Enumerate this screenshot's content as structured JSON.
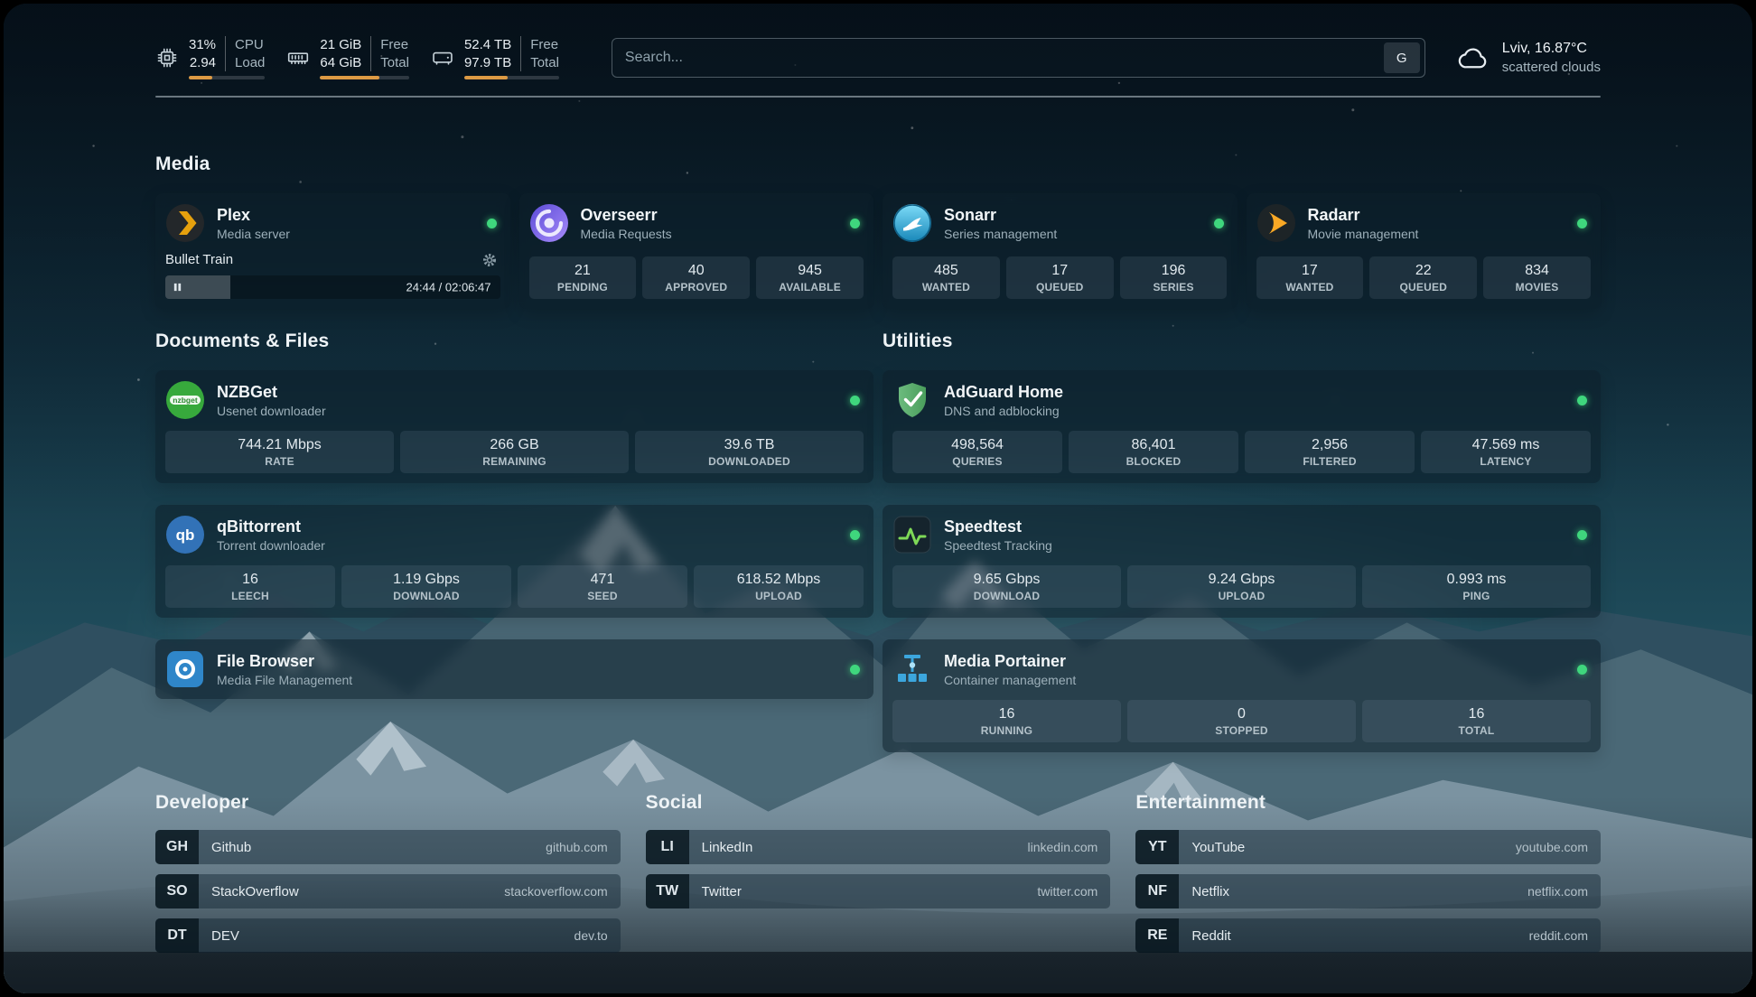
{
  "topbar": {
    "cpu": {
      "value1": "31%",
      "value2": "2.94",
      "label1": "CPU",
      "label2": "Load",
      "progress_percent": 31
    },
    "memory": {
      "value1": "21 GiB",
      "value2": "64 GiB",
      "label1": "Free",
      "label2": "Total",
      "progress_percent": 67
    },
    "disk": {
      "value1": "52.4 TB",
      "value2": "97.9 TB",
      "label1": "Free",
      "label2": "Total",
      "progress_percent": 46
    },
    "search": {
      "placeholder": "Search...",
      "provider": "G"
    },
    "weather": {
      "location": "Lviv, 16.87°C",
      "condition": "scattered clouds"
    }
  },
  "media": {
    "title": "Media",
    "plex": {
      "name": "Plex",
      "desc": "Media server",
      "playing_title": "Bullet Train",
      "time": "24:44 / 02:06:47",
      "progress_percent": 19.5
    },
    "overseerr": {
      "name": "Overseerr",
      "desc": "Media Requests",
      "stats": [
        {
          "value": "21",
          "label": "PENDING"
        },
        {
          "value": "40",
          "label": "APPROVED"
        },
        {
          "value": "945",
          "label": "AVAILABLE"
        }
      ]
    },
    "sonarr": {
      "name": "Sonarr",
      "desc": "Series management",
      "stats": [
        {
          "value": "485",
          "label": "WANTED"
        },
        {
          "value": "17",
          "label": "QUEUED"
        },
        {
          "value": "196",
          "label": "SERIES"
        }
      ]
    },
    "radarr": {
      "name": "Radarr",
      "desc": "Movie management",
      "stats": [
        {
          "value": "17",
          "label": "WANTED"
        },
        {
          "value": "22",
          "label": "QUEUED"
        },
        {
          "value": "834",
          "label": "MOVIES"
        }
      ]
    }
  },
  "documents": {
    "title": "Documents & Files",
    "nzbget": {
      "name": "NZBGet",
      "desc": "Usenet downloader",
      "stats": [
        {
          "value": "744.21 Mbps",
          "label": "RATE"
        },
        {
          "value": "266 GB",
          "label": "REMAINING"
        },
        {
          "value": "39.6 TB",
          "label": "DOWNLOADED"
        }
      ]
    },
    "qbittorrent": {
      "name": "qBittorrent",
      "desc": "Torrent downloader",
      "stats": [
        {
          "value": "16",
          "label": "LEECH"
        },
        {
          "value": "1.19 Gbps",
          "label": "DOWNLOAD"
        },
        {
          "value": "471",
          "label": "SEED"
        },
        {
          "value": "618.52 Mbps",
          "label": "UPLOAD"
        }
      ]
    },
    "filebrowser": {
      "name": "File Browser",
      "desc": "Media File Management"
    }
  },
  "utilities": {
    "title": "Utilities",
    "adguard": {
      "name": "AdGuard Home",
      "desc": "DNS and adblocking",
      "stats": [
        {
          "value": "498,564",
          "label": "QUERIES"
        },
        {
          "value": "86,401",
          "label": "BLOCKED"
        },
        {
          "value": "2,956",
          "label": "FILTERED"
        },
        {
          "value": "47.569 ms",
          "label": "LATENCY"
        }
      ]
    },
    "speedtest": {
      "name": "Speedtest",
      "desc": "Speedtest Tracking",
      "stats": [
        {
          "value": "9.65 Gbps",
          "label": "DOWNLOAD"
        },
        {
          "value": "9.24 Gbps",
          "label": "UPLOAD"
        },
        {
          "value": "0.993 ms",
          "label": "PING"
        }
      ]
    },
    "portainer": {
      "name": "Media Portainer",
      "desc": "Container management",
      "stats": [
        {
          "value": "16",
          "label": "RUNNING"
        },
        {
          "value": "0",
          "label": "STOPPED"
        },
        {
          "value": "16",
          "label": "TOTAL"
        }
      ]
    }
  },
  "bookmarks": {
    "developer": {
      "title": "Developer",
      "items": [
        {
          "abbr": "GH",
          "name": "Github",
          "url": "github.com"
        },
        {
          "abbr": "SO",
          "name": "StackOverflow",
          "url": "stackoverflow.com"
        },
        {
          "abbr": "DT",
          "name": "DEV",
          "url": "dev.to"
        }
      ]
    },
    "social": {
      "title": "Social",
      "items": [
        {
          "abbr": "LI",
          "name": "LinkedIn",
          "url": "linkedin.com"
        },
        {
          "abbr": "TW",
          "name": "Twitter",
          "url": "twitter.com"
        }
      ]
    },
    "entertainment": {
      "title": "Entertainment",
      "items": [
        {
          "abbr": "YT",
          "name": "YouTube",
          "url": "youtube.com"
        },
        {
          "abbr": "NF",
          "name": "Netflix",
          "url": "netflix.com"
        },
        {
          "abbr": "RE",
          "name": "Reddit",
          "url": "reddit.com"
        }
      ]
    }
  },
  "colors": {
    "status_green": "#3fd67d",
    "bar_orange": "#dd9a44",
    "plex_accent": "#e5a00d"
  }
}
